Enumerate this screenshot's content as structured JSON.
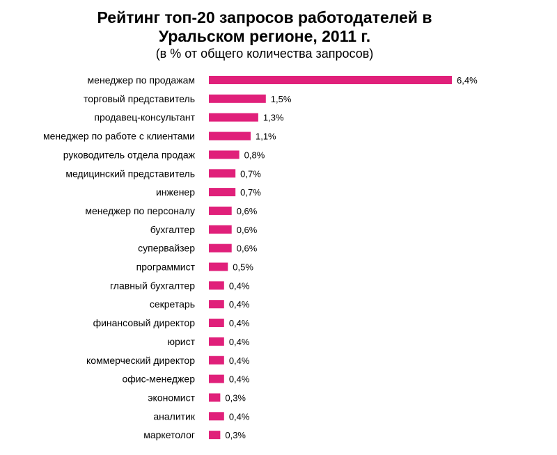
{
  "chart_data": {
    "type": "bar",
    "orientation": "horizontal",
    "title_lines": [
      "Рейтинг топ-20 запросов работодателей в",
      "Уральском регионе, 2011 г."
    ],
    "subtitle": "(в % от общего количества запросов)",
    "categories": [
      "менеджер по продажам",
      "торговый представитель",
      "продавец-консультант",
      "менеджер по работе с клиентами",
      "руководитель отдела продаж",
      "медицинский представитель",
      "инженер",
      "менеджер по персоналу",
      "бухгалтер",
      "супервайзер",
      "программист",
      "главный бухгалтер",
      "секретарь",
      "финансовый директор",
      "юрист",
      "коммерческий директор",
      "офис-менеджер",
      "экономист",
      "аналитик",
      "маркетолог"
    ],
    "values": [
      6.4,
      1.5,
      1.3,
      1.1,
      0.8,
      0.7,
      0.7,
      0.6,
      0.6,
      0.6,
      0.5,
      0.4,
      0.4,
      0.4,
      0.4,
      0.4,
      0.4,
      0.3,
      0.4,
      0.3
    ],
    "value_labels": [
      "6,4%",
      "1,5%",
      "1,3%",
      "1,1%",
      "0,8%",
      "0,7%",
      "0,7%",
      "0,6%",
      "0,6%",
      "0,6%",
      "0,5%",
      "0,4%",
      "0,4%",
      "0,4%",
      "0,4%",
      "0,4%",
      "0,4%",
      "0,3%",
      "0,4%",
      "0,3%"
    ],
    "xlim": [
      0,
      6.4
    ],
    "grid": false,
    "legend": "none",
    "bar_color": "#e0207a"
  }
}
